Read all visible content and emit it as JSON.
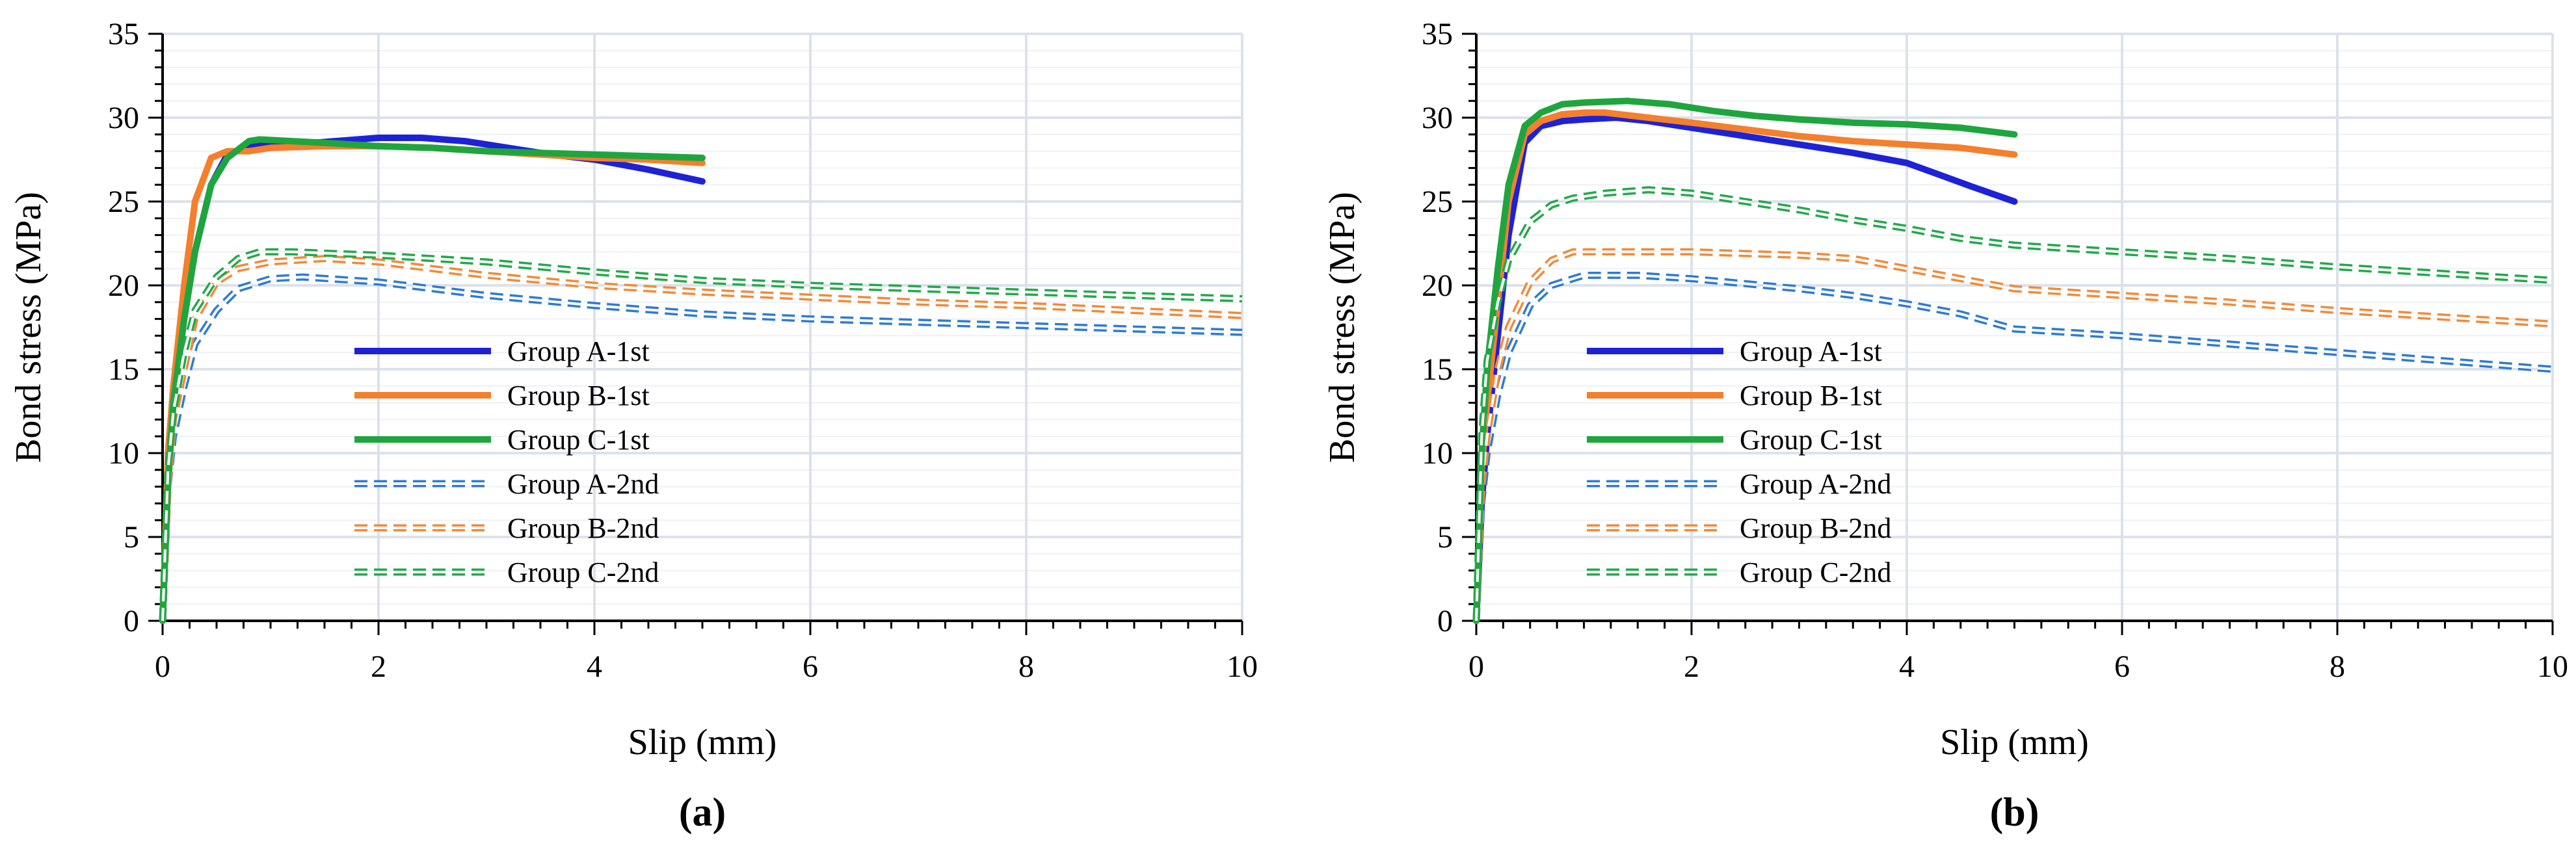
{
  "colors": {
    "group_a": "#1e22d6",
    "group_b": "#f47f2c",
    "group_c": "#1fa53e",
    "group_a_2nd": "#2f7bd2",
    "group_b_2nd": "#f08a3a",
    "group_c_2nd": "#24a84a",
    "major_grid": "#dce2ea",
    "minor_grid": "#eef1f5"
  },
  "chart_data": [
    {
      "type": "line",
      "panel_label": "(a)",
      "xlabel": "Slip (mm)",
      "ylabel": "Bond stress (MPa)",
      "xlim": [
        0,
        10
      ],
      "ylim": [
        0,
        35
      ],
      "xticks": [
        "0",
        "2",
        "4",
        "6",
        "8",
        "10"
      ],
      "yticks": [
        "0",
        "5",
        "10",
        "15",
        "20",
        "25",
        "30",
        "35"
      ],
      "grid": true,
      "legend_position": "center-left",
      "series": [
        {
          "name": "Group A-1st",
          "style": "solid",
          "color_key": "group_a",
          "x": [
            0,
            0.05,
            0.1,
            0.2,
            0.3,
            0.45,
            0.6,
            0.8,
            1.2,
            1.6,
            2.0,
            2.4,
            2.8,
            3.2,
            3.6,
            4.0,
            4.5,
            5.0
          ],
          "y": [
            0,
            9,
            13,
            18,
            22,
            26,
            27.8,
            28.3,
            28.4,
            28.6,
            28.8,
            28.8,
            28.6,
            28.2,
            27.8,
            27.5,
            26.9,
            26.2
          ]
        },
        {
          "name": "Group B-1st",
          "style": "solid",
          "color_key": "group_b",
          "x": [
            0,
            0.05,
            0.1,
            0.2,
            0.3,
            0.45,
            0.6,
            0.8,
            1.0,
            1.5,
            2.0,
            2.5,
            3.0,
            3.5,
            4.0,
            4.5,
            5.0
          ],
          "y": [
            0,
            10,
            14,
            20,
            25,
            27.6,
            28.0,
            28.0,
            28.2,
            28.3,
            28.3,
            28.2,
            28.0,
            27.8,
            27.6,
            27.5,
            27.3
          ]
        },
        {
          "name": "Group C-1st",
          "style": "solid",
          "color_key": "group_c",
          "x": [
            0,
            0.05,
            0.1,
            0.2,
            0.3,
            0.45,
            0.6,
            0.8,
            0.9,
            1.5,
            2.0,
            2.5,
            3.0,
            3.5,
            4.0,
            4.5,
            5.0
          ],
          "y": [
            0,
            8,
            13,
            18,
            22,
            26,
            27.6,
            28.6,
            28.7,
            28.5,
            28.3,
            28.2,
            28.0,
            27.9,
            27.8,
            27.7,
            27.6
          ]
        },
        {
          "name": "Group A-2nd",
          "style": "dashed",
          "color_key": "group_a_2nd",
          "x": [
            0,
            0.05,
            0.1,
            0.2,
            0.3,
            0.5,
            0.7,
            1.0,
            1.3,
            2.0,
            3.0,
            4.0,
            5.0,
            6.0,
            7.0,
            8.0,
            9.0,
            10.0
          ],
          "y": [
            0,
            8,
            11,
            14,
            16.5,
            18.5,
            19.8,
            20.4,
            20.5,
            20.2,
            19.4,
            18.8,
            18.3,
            18.0,
            17.8,
            17.6,
            17.4,
            17.2
          ]
        },
        {
          "name": "Group B-2nd",
          "style": "dashed",
          "color_key": "group_b_2nd",
          "x": [
            0,
            0.05,
            0.1,
            0.2,
            0.3,
            0.5,
            0.7,
            1.0,
            1.5,
            2.0,
            3.0,
            4.0,
            5.0,
            6.0,
            7.0,
            8.0,
            9.0,
            10.0
          ],
          "y": [
            0,
            8,
            12,
            15,
            18,
            20.2,
            21.0,
            21.4,
            21.6,
            21.4,
            20.6,
            20.0,
            19.6,
            19.3,
            19.0,
            18.8,
            18.5,
            18.2
          ]
        },
        {
          "name": "Group C-2nd",
          "style": "dashed",
          "color_key": "group_c_2nd",
          "x": [
            0,
            0.05,
            0.1,
            0.2,
            0.3,
            0.5,
            0.7,
            0.9,
            1.2,
            2.0,
            3.0,
            4.0,
            5.0,
            6.0,
            7.0,
            8.0,
            9.0,
            10.0
          ],
          "y": [
            0,
            9,
            12.5,
            16,
            18.5,
            20.5,
            21.6,
            22.0,
            22.0,
            21.8,
            21.4,
            20.8,
            20.3,
            20.0,
            19.8,
            19.6,
            19.4,
            19.2
          ]
        }
      ]
    },
    {
      "type": "line",
      "panel_label": "(b)",
      "xlabel": "Slip (mm)",
      "ylabel": "Bond stress (MPa)",
      "xlim": [
        0,
        10
      ],
      "ylim": [
        0,
        35
      ],
      "xticks": [
        "0",
        "2",
        "4",
        "6",
        "8",
        "10"
      ],
      "yticks": [
        "0",
        "5",
        "10",
        "15",
        "20",
        "25",
        "30",
        "35"
      ],
      "grid": true,
      "legend_position": "center-left",
      "series": [
        {
          "name": "Group A-1st",
          "style": "solid",
          "color_key": "group_a",
          "x": [
            0,
            0.05,
            0.1,
            0.2,
            0.3,
            0.45,
            0.6,
            0.8,
            1.0,
            1.3,
            1.6,
            2.0,
            2.5,
            3.0,
            3.5,
            4.0,
            4.3,
            4.6,
            5.0
          ],
          "y": [
            0,
            7,
            11,
            17,
            23,
            28.5,
            29.5,
            29.8,
            29.9,
            30.0,
            29.8,
            29.4,
            28.9,
            28.4,
            27.9,
            27.3,
            26.6,
            25.9,
            25.0
          ]
        },
        {
          "name": "Group B-1st",
          "style": "solid",
          "color_key": "group_b",
          "x": [
            0,
            0.05,
            0.1,
            0.2,
            0.3,
            0.45,
            0.6,
            0.8,
            1.0,
            1.2,
            1.6,
            2.0,
            2.5,
            3.0,
            3.5,
            4.0,
            4.5,
            5.0
          ],
          "y": [
            0,
            9,
            13,
            19,
            25,
            29,
            29.8,
            30.2,
            30.3,
            30.3,
            30.0,
            29.7,
            29.3,
            28.9,
            28.6,
            28.4,
            28.2,
            27.8
          ]
        },
        {
          "name": "Group C-1st",
          "style": "solid",
          "color_key": "group_c",
          "x": [
            0,
            0.05,
            0.1,
            0.2,
            0.3,
            0.45,
            0.6,
            0.8,
            1.0,
            1.4,
            1.8,
            2.2,
            2.6,
            3.0,
            3.5,
            4.0,
            4.5,
            5.0
          ],
          "y": [
            0,
            10,
            15,
            21,
            26,
            29.5,
            30.3,
            30.8,
            30.9,
            31.0,
            30.8,
            30.4,
            30.1,
            29.9,
            29.7,
            29.6,
            29.4,
            29.0
          ]
        },
        {
          "name": "Group A-2nd",
          "style": "dashed",
          "color_key": "group_a_2nd",
          "x": [
            0,
            0.05,
            0.1,
            0.2,
            0.3,
            0.5,
            0.7,
            1.0,
            1.5,
            2.0,
            2.5,
            3.0,
            3.5,
            4.0,
            4.5,
            5.0,
            6.0,
            7.0,
            8.0,
            9.0,
            10.0
          ],
          "y": [
            0,
            7,
            10,
            13.5,
            16,
            18.8,
            20.0,
            20.6,
            20.6,
            20.4,
            20.1,
            19.8,
            19.4,
            18.9,
            18.3,
            17.4,
            17.0,
            16.5,
            16.0,
            15.5,
            15.0
          ]
        },
        {
          "name": "Group B-2nd",
          "style": "dashed",
          "color_key": "group_b_2nd",
          "x": [
            0,
            0.05,
            0.1,
            0.2,
            0.3,
            0.5,
            0.7,
            0.9,
            1.2,
            2.0,
            2.5,
            3.0,
            3.5,
            4.0,
            4.5,
            5.0,
            6.0,
            7.0,
            8.0,
            9.0,
            10.0
          ],
          "y": [
            0,
            8,
            11,
            15,
            17.5,
            20.2,
            21.5,
            22.0,
            22.0,
            22.0,
            21.9,
            21.8,
            21.6,
            21.0,
            20.4,
            19.8,
            19.4,
            19.0,
            18.5,
            18.1,
            17.7
          ]
        },
        {
          "name": "Group C-2nd",
          "style": "dashed",
          "color_key": "group_c_2nd",
          "x": [
            0,
            0.05,
            0.1,
            0.2,
            0.3,
            0.5,
            0.7,
            0.9,
            1.2,
            1.6,
            2.0,
            2.5,
            3.0,
            3.5,
            4.0,
            4.5,
            5.0,
            6.0,
            7.0,
            8.0,
            9.0,
            10.0
          ],
          "y": [
            0,
            11,
            15.5,
            19,
            21.5,
            23.8,
            24.8,
            25.2,
            25.5,
            25.7,
            25.5,
            25.0,
            24.5,
            23.9,
            23.4,
            22.8,
            22.4,
            22.0,
            21.6,
            21.1,
            20.7,
            20.3
          ]
        }
      ]
    }
  ]
}
